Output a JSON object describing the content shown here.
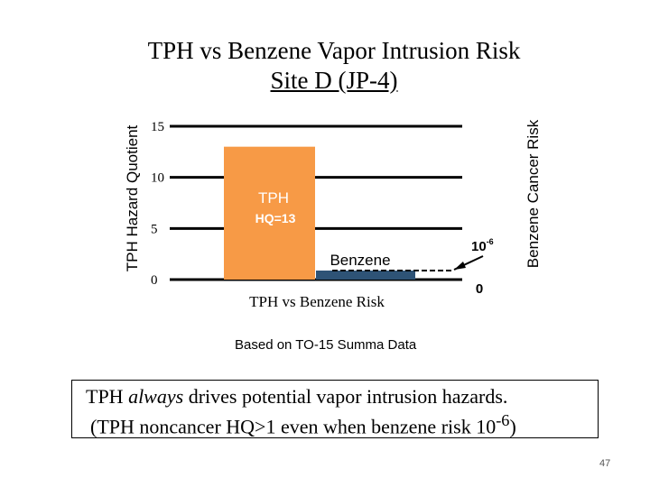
{
  "slide": {
    "title_line1": "TPH vs Benzene Vapor Intrusion Risk",
    "title_line2": "Site D (JP-4)",
    "note": "Based on TO-15 Summa Data",
    "message": {
      "l1_a": "TPH ",
      "l1_em": "always",
      "l1_b": " drives potential vapor intrusion hazards.",
      "l2_a": "(TPH noncancer HQ>1 even when benzene risk 10",
      "l2_sup": "-6",
      "l2_b": ")"
    },
    "page_number": "47"
  },
  "chart_data": {
    "type": "bar",
    "xlabel": "TPH vs Benzene Risk",
    "ylabel": "TPH Hazard Quotient",
    "ylabel_right": "Benzene Cancer Risk",
    "ylim": [
      0,
      15
    ],
    "yticks": [
      "0",
      "5",
      "10",
      "15"
    ],
    "right_ticks": {
      "base": "10",
      "exp": "-6",
      "zero": "0"
    },
    "grid": true,
    "bars": [
      {
        "label_line1": "TPH",
        "label_line2": "HQ=13",
        "value": 13,
        "color": "#f79a46",
        "axis": "left"
      },
      {
        "label": "Benzene",
        "value_text": "10-6",
        "value": 0.1,
        "color": "#2e5376",
        "axis": "right"
      }
    ]
  }
}
